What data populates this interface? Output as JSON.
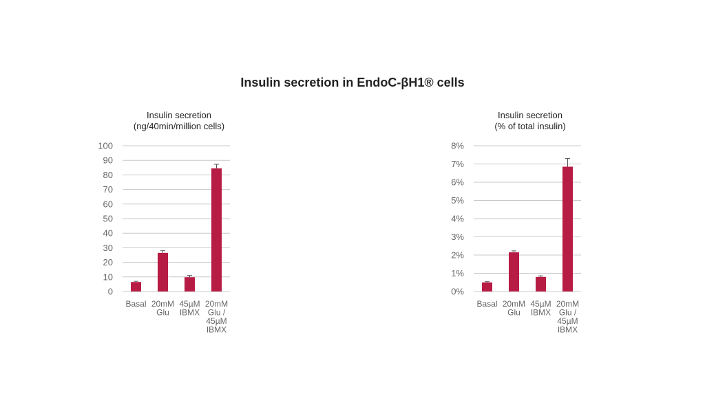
{
  "page": {
    "title": "Insulin secretion in EndoC-βH1® cells"
  },
  "colors": {
    "bar": "#b71c45",
    "grid": "#c8c8c8",
    "axis_text": "#666666",
    "error_bar": "#555555"
  },
  "chart_data": [
    {
      "type": "bar",
      "title_lines": [
        "Insulin secretion",
        "(ng/40min/million cells)"
      ],
      "categories": [
        [
          "Basal"
        ],
        [
          "20mM",
          "Glu"
        ],
        [
          "45µM",
          "IBMX"
        ],
        [
          "20mM",
          "Glu /",
          "45µM",
          "IBMX"
        ]
      ],
      "values": [
        6.5,
        26.5,
        9.8,
        84.5
      ],
      "errors": [
        0.5,
        1.5,
        1.2,
        2.8
      ],
      "ylim": [
        0,
        100
      ],
      "yticks": [
        0,
        10,
        20,
        30,
        40,
        50,
        60,
        70,
        80,
        90,
        100
      ],
      "ytick_labels": [
        "0",
        "10",
        "20",
        "30",
        "40",
        "50",
        "60",
        "70",
        "80",
        "90",
        "100"
      ],
      "grid": true,
      "xlabel": "",
      "ylabel": ""
    },
    {
      "type": "bar",
      "title_lines": [
        "Insulin secretion",
        "(% of total insulin)"
      ],
      "categories": [
        [
          "Basal"
        ],
        [
          "20mM",
          "Glu"
        ],
        [
          "45µM",
          "IBMX"
        ],
        [
          "20mM",
          "Glu /",
          "45µM",
          "IBMX"
        ]
      ],
      "values": [
        0.5,
        2.15,
        0.8,
        6.85
      ],
      "errors": [
        0.04,
        0.08,
        0.06,
        0.45
      ],
      "ylim": [
        0,
        8
      ],
      "yticks": [
        0,
        1,
        2,
        3,
        4,
        5,
        6,
        7,
        8
      ],
      "ytick_labels": [
        "0%",
        "1%",
        "2%",
        "3%",
        "4%",
        "5%",
        "6%",
        "7%",
        "8%"
      ],
      "grid": true,
      "xlabel": "",
      "ylabel": ""
    }
  ]
}
